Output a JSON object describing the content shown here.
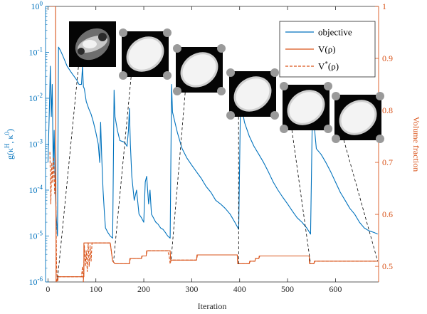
{
  "chart_data": {
    "type": "line",
    "xlabel": "Iteration",
    "ylabel_left": "g(κ^H, κ^0)",
    "ylabel_right": "Volume fraction",
    "xlim": [
      -5,
      690
    ],
    "ylim_left": [
      1e-06,
      1
    ],
    "ylim_right": [
      0.47,
      1.0
    ],
    "left_scale": "log",
    "grid": false,
    "legend_position": "top-right",
    "x_ticks": [
      "0",
      "100",
      "200",
      "300",
      "400",
      "500",
      "600"
    ],
    "y_left_ticks": [
      "10^-6",
      "10^-5",
      "10^-4",
      "10^-3",
      "10^-2",
      "10^-1",
      "10^0"
    ],
    "y_right_ticks": [
      "0.5",
      "0.6",
      "0.7",
      "0.8",
      "0.9",
      "1"
    ],
    "colors": {
      "objective": "#0072BD",
      "volume": "#D95319"
    },
    "series": [
      {
        "name": "objective",
        "axis": "left",
        "style": "solid",
        "points": [
          [
            0,
            0.0004
          ],
          [
            3,
            0.006
          ],
          [
            5,
            0.05
          ],
          [
            7,
            0.004
          ],
          [
            9,
            0.02
          ],
          [
            11,
            0.0003
          ],
          [
            13,
            0.002
          ],
          [
            15,
            0.00015
          ],
          [
            17,
            3e-05
          ],
          [
            20,
            1e-05
          ],
          [
            22,
            0.13
          ],
          [
            26,
            0.11
          ],
          [
            32,
            0.08
          ],
          [
            40,
            0.05
          ],
          [
            50,
            0.035
          ],
          [
            60,
            0.025
          ],
          [
            65,
            0.02
          ],
          [
            70,
            0.02
          ],
          [
            72,
            0.05
          ],
          [
            74,
            0.018
          ],
          [
            76,
            0.016
          ],
          [
            80,
            0.0085
          ],
          [
            85,
            0.006
          ],
          [
            90,
            0.0045
          ],
          [
            95,
            0.003
          ],
          [
            100,
            0.0018
          ],
          [
            105,
            0.001
          ],
          [
            108,
            0.0004
          ],
          [
            110,
            0.003
          ],
          [
            112,
            0.0006
          ],
          [
            115,
            0.0001
          ],
          [
            118,
            3e-05
          ],
          [
            120,
            1.5e-05
          ],
          [
            125,
            1.2e-05
          ],
          [
            130,
            1e-05
          ],
          [
            135,
            9e-06
          ],
          [
            138,
            0.015
          ],
          [
            140,
            0.004
          ],
          [
            145,
            0.002
          ],
          [
            150,
            0.0012
          ],
          [
            160,
            0.0011
          ],
          [
            165,
            0.0009
          ],
          [
            168,
            0.002
          ],
          [
            170,
            0.006
          ],
          [
            172,
            0.001
          ],
          [
            175,
            0.0002
          ],
          [
            180,
            6e-05
          ],
          [
            185,
            0.0001
          ],
          [
            190,
            3e-05
          ],
          [
            195,
            2.5e-05
          ],
          [
            200,
            2e-05
          ],
          [
            203,
            0.00015
          ],
          [
            206,
            0.0002
          ],
          [
            210,
            5e-05
          ],
          [
            213,
            0.0001
          ],
          [
            216,
            3e-05
          ],
          [
            220,
            2.5e-05
          ],
          [
            225,
            2e-05
          ],
          [
            230,
            1.8e-05
          ],
          [
            235,
            1.5e-05
          ],
          [
            240,
            1.4e-05
          ],
          [
            245,
            1.2e-05
          ],
          [
            250,
            1e-05
          ],
          [
            255,
            9e-06
          ],
          [
            258,
            0.02
          ],
          [
            260,
            0.005
          ],
          [
            265,
            0.003
          ],
          [
            270,
            0.0018
          ],
          [
            275,
            0.0012
          ],
          [
            280,
            0.0008
          ],
          [
            290,
            0.0005
          ],
          [
            300,
            0.00035
          ],
          [
            310,
            0.00025
          ],
          [
            320,
            0.00018
          ],
          [
            330,
            0.00012
          ],
          [
            340,
            9e-05
          ],
          [
            350,
            6e-05
          ],
          [
            360,
            5e-05
          ],
          [
            370,
            4e-05
          ],
          [
            380,
            3e-05
          ],
          [
            390,
            2e-05
          ],
          [
            398,
            1.4e-05
          ],
          [
            402,
            0.012
          ],
          [
            405,
            0.006
          ],
          [
            410,
            0.003
          ],
          [
            420,
            0.0015
          ],
          [
            430,
            0.0009
          ],
          [
            440,
            0.0006
          ],
          [
            450,
            0.0004
          ],
          [
            460,
            0.00025
          ],
          [
            470,
            0.00015
          ],
          [
            480,
            0.0001
          ],
          [
            490,
            7e-05
          ],
          [
            500,
            5e-05
          ],
          [
            510,
            3.5e-05
          ],
          [
            520,
            2.5e-05
          ],
          [
            530,
            2e-05
          ],
          [
            540,
            1.5e-05
          ],
          [
            548,
            1.1e-05
          ],
          [
            552,
            0.007
          ],
          [
            555,
            0.003
          ],
          [
            560,
            0.0008
          ],
          [
            570,
            0.0006
          ],
          [
            580,
            0.0004
          ],
          [
            590,
            0.00025
          ],
          [
            600,
            0.00015
          ],
          [
            610,
            9e-05
          ],
          [
            620,
            6e-05
          ],
          [
            630,
            4e-05
          ],
          [
            640,
            3e-05
          ],
          [
            650,
            2e-05
          ],
          [
            660,
            1.5e-05
          ],
          [
            670,
            1.3e-05
          ],
          [
            680,
            1.2e-05
          ],
          [
            688,
            1.1e-05
          ]
        ]
      },
      {
        "name": "V(ρ)",
        "axis": "right",
        "style": "solid",
        "points": [
          [
            4,
            1.0
          ],
          [
            16,
            1.0
          ],
          [
            17,
            0.47
          ],
          [
            19,
            0.475
          ],
          [
            21,
            0.48
          ],
          [
            75,
            0.48
          ],
          [
            75,
            0.545
          ],
          [
            130,
            0.545
          ],
          [
            135,
            0.51
          ],
          [
            140,
            0.505
          ],
          [
            170,
            0.505
          ],
          [
            171,
            0.515
          ],
          [
            195,
            0.515
          ],
          [
            196,
            0.52
          ],
          [
            205,
            0.52
          ],
          [
            206,
            0.53
          ],
          [
            255,
            0.53
          ],
          [
            256,
            0.512
          ],
          [
            310,
            0.512
          ],
          [
            311,
            0.522
          ],
          [
            395,
            0.522
          ],
          [
            396,
            0.505
          ],
          [
            420,
            0.505
          ],
          [
            421,
            0.51
          ],
          [
            432,
            0.51
          ],
          [
            433,
            0.515
          ],
          [
            440,
            0.515
          ],
          [
            441,
            0.52
          ],
          [
            545,
            0.52
          ],
          [
            546,
            0.505
          ],
          [
            555,
            0.505
          ],
          [
            556,
            0.51
          ],
          [
            688,
            0.51
          ]
        ]
      },
      {
        "name": "V*(ρ)",
        "axis": "right",
        "style": "dashed",
        "points": [
          [
            4,
            0.72
          ],
          [
            6,
            0.62
          ],
          [
            8,
            0.7
          ],
          [
            10,
            0.66
          ],
          [
            12,
            0.71
          ],
          [
            14,
            0.64
          ],
          [
            16,
            0.68
          ],
          [
            18,
            0.5
          ],
          [
            20,
            0.47
          ],
          [
            22,
            0.48
          ],
          [
            70,
            0.48
          ],
          [
            72,
            0.5
          ],
          [
            74,
            0.47
          ],
          [
            76,
            0.54
          ],
          [
            78,
            0.5
          ],
          [
            80,
            0.53
          ],
          [
            82,
            0.49
          ],
          [
            84,
            0.545
          ],
          [
            86,
            0.5
          ],
          [
            88,
            0.54
          ],
          [
            90,
            0.51
          ],
          [
            92,
            0.545
          ],
          [
            130,
            0.545
          ],
          [
            135,
            0.51
          ],
          [
            140,
            0.505
          ],
          [
            170,
            0.505
          ],
          [
            172,
            0.515
          ],
          [
            195,
            0.515
          ],
          [
            197,
            0.52
          ],
          [
            205,
            0.52
          ],
          [
            207,
            0.53
          ],
          [
            250,
            0.53
          ],
          [
            253,
            0.52
          ],
          [
            255,
            0.505
          ],
          [
            257,
            0.512
          ],
          [
            310,
            0.512
          ],
          [
            312,
            0.522
          ],
          [
            395,
            0.522
          ],
          [
            397,
            0.505
          ],
          [
            420,
            0.505
          ],
          [
            422,
            0.51
          ],
          [
            432,
            0.51
          ],
          [
            434,
            0.515
          ],
          [
            440,
            0.515
          ],
          [
            442,
            0.52
          ],
          [
            545,
            0.52
          ],
          [
            547,
            0.505
          ],
          [
            555,
            0.505
          ],
          [
            557,
            0.51
          ],
          [
            688,
            0.51
          ]
        ]
      }
    ],
    "annotations": [
      {
        "type": "inset-image",
        "anchor_iteration": 20
      },
      {
        "type": "inset-image",
        "anchor_iteration": 137
      },
      {
        "type": "inset-image",
        "anchor_iteration": 257
      },
      {
        "type": "inset-image",
        "anchor_iteration": 398
      },
      {
        "type": "inset-image",
        "anchor_iteration": 548
      },
      {
        "type": "inset-image",
        "anchor_iteration": 688
      }
    ]
  }
}
